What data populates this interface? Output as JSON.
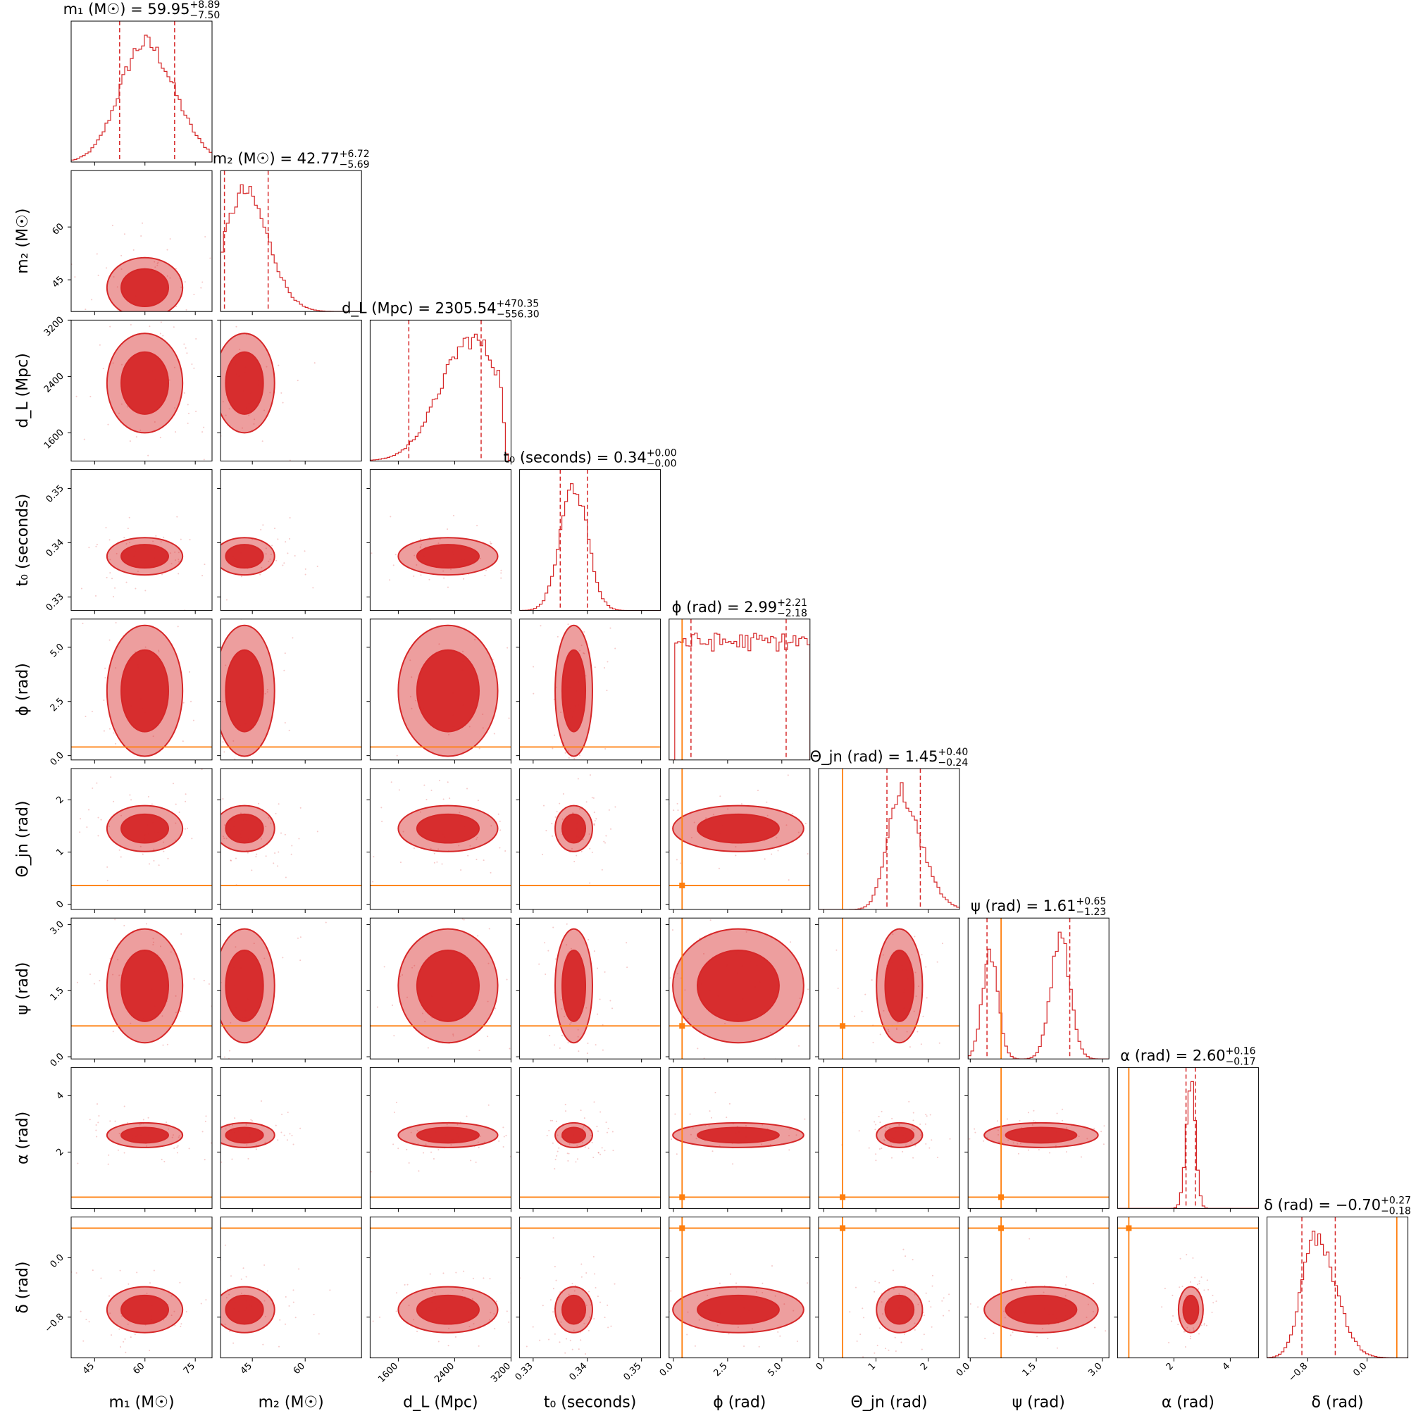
{
  "colors": {
    "posterior": "#d62728",
    "truth": "#ff7f0e",
    "frame": "#000000"
  },
  "chart_data": {
    "type": "corner",
    "parameters": [
      {
        "key": "m1",
        "ax_label": "m₁ (M☉)",
        "title_main": "m₁ (M☉) = 59.95",
        "title_up": "+8.89",
        "title_lo": "−7.50",
        "median": 59.95,
        "lower": 52.45,
        "upper": 68.84,
        "range": [
          38,
          80
        ],
        "ticks": [
          45,
          60,
          75
        ],
        "tick_labels": [
          "45",
          "60",
          "75"
        ],
        "truth": null
      },
      {
        "key": "m2",
        "ax_label": "m₂ (M☉)",
        "title_main": "m₂ (M☉) = 42.77",
        "title_up": "+6.72",
        "title_lo": "−5.69",
        "median": 42.77,
        "lower": 37.08,
        "upper": 49.49,
        "range": [
          36,
          76
        ],
        "ticks": [
          45,
          60
        ],
        "tick_labels": [
          "45",
          "60"
        ],
        "truth": null
      },
      {
        "key": "dL",
        "ax_label": "d_L (Mpc)",
        "title_main": "d_L (Mpc) = 2305.54",
        "title_up": "+470.35",
        "title_lo": "−556.30",
        "median": 2305.54,
        "lower": 1749.24,
        "upper": 2775.89,
        "range": [
          1200,
          3200
        ],
        "ticks": [
          1600,
          2400,
          3200
        ],
        "tick_labels": [
          "1600",
          "2400",
          "3200"
        ],
        "truth": null
      },
      {
        "key": "t0",
        "ax_label": "t₀ (seconds)",
        "title_main": "t₀ (seconds) = 0.34",
        "title_up": "+0.00",
        "title_lo": "−0.00",
        "median": 0.3375,
        "lower": 0.335,
        "upper": 0.34,
        "range": [
          0.3275,
          0.3535
        ],
        "ticks": [
          0.33,
          0.34,
          0.35
        ],
        "tick_labels": [
          "0.33",
          "0.34",
          "0.35"
        ],
        "truth": null
      },
      {
        "key": "phi",
        "ax_label": "ϕ (rad)",
        "title_main": "ϕ (rad) = 2.99",
        "title_up": "+2.21",
        "title_lo": "−2.18",
        "median": 2.99,
        "lower": 0.81,
        "upper": 5.2,
        "range": [
          -0.2,
          6.3
        ],
        "ticks": [
          0,
          2.5,
          5
        ],
        "tick_labels": [
          "0.0",
          "2.5",
          "5.0"
        ],
        "truth": 0.4
      },
      {
        "key": "theta",
        "ax_label": "Θ_jn (rad)",
        "title_main": "Θ_jn (rad) = 1.45",
        "title_up": "+0.40",
        "title_lo": "−0.24",
        "median": 1.45,
        "lower": 1.21,
        "upper": 1.85,
        "range": [
          -0.1,
          2.6
        ],
        "ticks": [
          0,
          1,
          2
        ],
        "tick_labels": [
          "0",
          "1",
          "2"
        ],
        "truth": 0.36
      },
      {
        "key": "psi",
        "ax_label": "ψ (rad)",
        "title_main": "ψ (rad) = 1.61",
        "title_up": "+0.65",
        "title_lo": "−1.23",
        "median": 1.61,
        "lower": 0.38,
        "upper": 2.26,
        "range": [
          -0.05,
          3.15
        ],
        "ticks": [
          0,
          1.5,
          3
        ],
        "tick_labels": [
          "0.0",
          "1.5",
          "3.0"
        ],
        "truth": 0.7
      },
      {
        "key": "alpha",
        "ax_label": "α (rad)",
        "title_main": "α (rad) = 2.60",
        "title_up": "+0.16",
        "title_lo": "−0.17",
        "median": 2.6,
        "lower": 2.43,
        "upper": 2.76,
        "range": [
          0,
          5.0
        ],
        "ticks": [
          2,
          4
        ],
        "tick_labels": [
          "2",
          "4"
        ],
        "truth": 0.4
      },
      {
        "key": "delta",
        "ax_label": "δ (rad)",
        "title_main": "δ (rad) = −0.70",
        "title_up": "+0.27",
        "title_lo": "−0.18",
        "median": -0.7,
        "lower": -0.88,
        "upper": -0.43,
        "range": [
          -1.35,
          0.55
        ],
        "ticks": [
          -0.8,
          0.0
        ],
        "tick_labels": [
          "−0.8",
          "0.0"
        ],
        "truth": 0.4
      }
    ]
  }
}
